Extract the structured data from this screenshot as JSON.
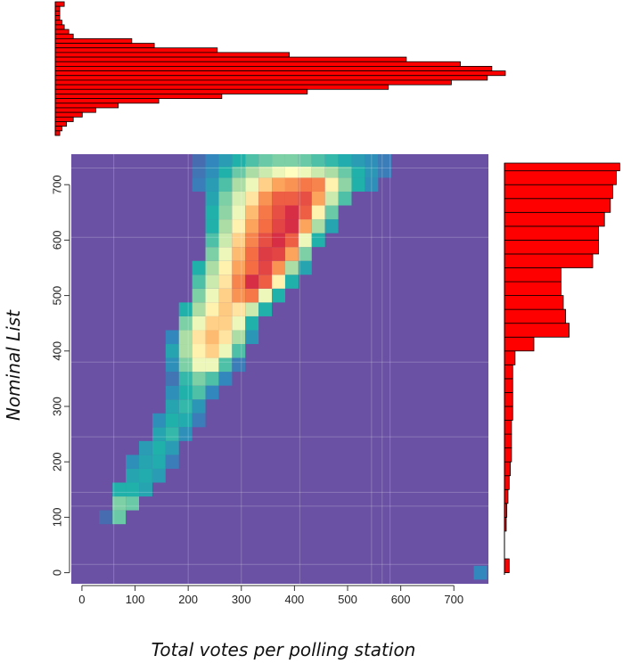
{
  "chart_data": [
    {
      "type": "heatmap",
      "title": "",
      "xlabel": "Total votes per polling station",
      "ylabel": "Nominal List",
      "xlim": [
        -20,
        765
      ],
      "ylim": [
        -20,
        755
      ],
      "xticks": [
        0,
        100,
        200,
        300,
        400,
        500,
        600,
        700
      ],
      "yticks": [
        0,
        100,
        200,
        300,
        400,
        500,
        600,
        700
      ],
      "cell_size": 25,
      "grid": true,
      "colormap": "spectral",
      "background_color": "#6a51a3",
      "cells": [
        [
          45,
          100,
          0.08
        ],
        [
          70,
          100,
          0.38
        ],
        [
          70,
          125,
          0.4
        ],
        [
          95,
          125,
          0.38
        ],
        [
          70,
          150,
          0.3
        ],
        [
          95,
          150,
          0.3
        ],
        [
          120,
          150,
          0.25
        ],
        [
          95,
          175,
          0.25
        ],
        [
          120,
          175,
          0.28
        ],
        [
          145,
          175,
          0.22
        ],
        [
          95,
          200,
          0.18
        ],
        [
          120,
          200,
          0.25
        ],
        [
          145,
          200,
          0.28
        ],
        [
          170,
          200,
          0.12
        ],
        [
          120,
          225,
          0.22
        ],
        [
          145,
          225,
          0.3
        ],
        [
          170,
          225,
          0.22
        ],
        [
          145,
          250,
          0.25
        ],
        [
          170,
          250,
          0.32
        ],
        [
          195,
          250,
          0.18
        ],
        [
          145,
          275,
          0.18
        ],
        [
          170,
          275,
          0.3
        ],
        [
          195,
          275,
          0.28
        ],
        [
          220,
          275,
          0.12
        ],
        [
          170,
          300,
          0.25
        ],
        [
          195,
          300,
          0.32
        ],
        [
          220,
          300,
          0.2
        ],
        [
          170,
          325,
          0.18
        ],
        [
          195,
          325,
          0.3
        ],
        [
          220,
          325,
          0.35
        ],
        [
          245,
          325,
          0.15
        ],
        [
          170,
          350,
          0.1
        ],
        [
          195,
          350,
          0.32
        ],
        [
          220,
          350,
          0.4
        ],
        [
          245,
          350,
          0.35
        ],
        [
          270,
          350,
          0.15
        ],
        [
          170,
          375,
          0.18
        ],
        [
          195,
          375,
          0.4
        ],
        [
          220,
          375,
          0.55
        ],
        [
          245,
          375,
          0.55
        ],
        [
          270,
          375,
          0.35
        ],
        [
          295,
          375,
          0.12
        ],
        [
          170,
          400,
          0.25
        ],
        [
          195,
          400,
          0.45
        ],
        [
          220,
          400,
          0.6
        ],
        [
          245,
          400,
          0.65
        ],
        [
          270,
          400,
          0.55
        ],
        [
          295,
          400,
          0.35
        ],
        [
          170,
          425,
          0.15
        ],
        [
          195,
          425,
          0.45
        ],
        [
          220,
          425,
          0.62
        ],
        [
          245,
          425,
          0.68
        ],
        [
          270,
          425,
          0.62
        ],
        [
          295,
          425,
          0.45
        ],
        [
          320,
          425,
          0.2
        ],
        [
          195,
          450,
          0.4
        ],
        [
          220,
          450,
          0.55
        ],
        [
          245,
          450,
          0.65
        ],
        [
          270,
          450,
          0.65
        ],
        [
          295,
          450,
          0.55
        ],
        [
          320,
          450,
          0.3
        ],
        [
          195,
          475,
          0.3
        ],
        [
          220,
          475,
          0.45
        ],
        [
          245,
          475,
          0.6
        ],
        [
          270,
          475,
          0.66
        ],
        [
          295,
          475,
          0.62
        ],
        [
          320,
          475,
          0.5
        ],
        [
          345,
          475,
          0.3
        ],
        [
          220,
          500,
          0.4
        ],
        [
          245,
          500,
          0.55
        ],
        [
          270,
          500,
          0.65
        ],
        [
          295,
          500,
          0.75
        ],
        [
          320,
          500,
          0.8
        ],
        [
          345,
          500,
          0.55
        ],
        [
          370,
          500,
          0.3
        ],
        [
          220,
          525,
          0.35
        ],
        [
          245,
          525,
          0.5
        ],
        [
          270,
          525,
          0.62
        ],
        [
          295,
          525,
          0.78
        ],
        [
          320,
          525,
          0.95
        ],
        [
          345,
          525,
          0.85
        ],
        [
          370,
          525,
          0.6
        ],
        [
          395,
          525,
          0.3
        ],
        [
          220,
          550,
          0.3
        ],
        [
          245,
          550,
          0.45
        ],
        [
          270,
          550,
          0.6
        ],
        [
          295,
          550,
          0.72
        ],
        [
          320,
          550,
          0.82
        ],
        [
          345,
          550,
          0.9
        ],
        [
          370,
          550,
          0.75
        ],
        [
          395,
          550,
          0.45
        ],
        [
          420,
          550,
          0.25
        ],
        [
          245,
          575,
          0.4
        ],
        [
          270,
          575,
          0.55
        ],
        [
          295,
          575,
          0.68
        ],
        [
          320,
          575,
          0.82
        ],
        [
          345,
          575,
          0.92
        ],
        [
          370,
          575,
          0.9
        ],
        [
          395,
          575,
          0.72
        ],
        [
          420,
          575,
          0.4
        ],
        [
          245,
          600,
          0.35
        ],
        [
          270,
          600,
          0.5
        ],
        [
          295,
          600,
          0.65
        ],
        [
          320,
          600,
          0.78
        ],
        [
          345,
          600,
          0.88
        ],
        [
          370,
          600,
          0.95
        ],
        [
          395,
          600,
          0.85
        ],
        [
          420,
          600,
          0.55
        ],
        [
          445,
          600,
          0.3
        ],
        [
          245,
          625,
          0.3
        ],
        [
          270,
          625,
          0.45
        ],
        [
          295,
          625,
          0.6
        ],
        [
          320,
          625,
          0.72
        ],
        [
          345,
          625,
          0.82
        ],
        [
          370,
          625,
          0.9
        ],
        [
          395,
          625,
          0.95
        ],
        [
          420,
          625,
          0.72
        ],
        [
          445,
          625,
          0.45
        ],
        [
          470,
          625,
          0.25
        ],
        [
          245,
          650,
          0.3
        ],
        [
          270,
          650,
          0.42
        ],
        [
          295,
          650,
          0.55
        ],
        [
          320,
          650,
          0.68
        ],
        [
          345,
          650,
          0.8
        ],
        [
          370,
          650,
          0.88
        ],
        [
          395,
          650,
          0.95
        ],
        [
          420,
          650,
          0.85
        ],
        [
          445,
          650,
          0.6
        ],
        [
          470,
          650,
          0.38
        ],
        [
          245,
          675,
          0.25
        ],
        [
          270,
          675,
          0.4
        ],
        [
          295,
          675,
          0.52
        ],
        [
          320,
          675,
          0.62
        ],
        [
          345,
          675,
          0.75
        ],
        [
          370,
          675,
          0.85
        ],
        [
          395,
          675,
          0.85
        ],
        [
          420,
          675,
          0.88
        ],
        [
          445,
          675,
          0.72
        ],
        [
          470,
          675,
          0.5
        ],
        [
          495,
          675,
          0.35
        ],
        [
          220,
          700,
          0.12
        ],
        [
          245,
          700,
          0.22
        ],
        [
          270,
          700,
          0.35
        ],
        [
          295,
          700,
          0.45
        ],
        [
          320,
          700,
          0.55
        ],
        [
          345,
          700,
          0.65
        ],
        [
          370,
          700,
          0.72
        ],
        [
          395,
          700,
          0.75
        ],
        [
          420,
          700,
          0.8
        ],
        [
          445,
          700,
          0.78
        ],
        [
          470,
          700,
          0.6
        ],
        [
          495,
          700,
          0.42
        ],
        [
          520,
          700,
          0.3
        ],
        [
          545,
          700,
          0.18
        ],
        [
          220,
          725,
          0.1
        ],
        [
          245,
          725,
          0.18
        ],
        [
          270,
          725,
          0.3
        ],
        [
          295,
          725,
          0.38
        ],
        [
          320,
          725,
          0.45
        ],
        [
          345,
          725,
          0.5
        ],
        [
          370,
          725,
          0.55
        ],
        [
          395,
          725,
          0.58
        ],
        [
          420,
          725,
          0.55
        ],
        [
          445,
          725,
          0.5
        ],
        [
          470,
          725,
          0.45
        ],
        [
          495,
          725,
          0.38
        ],
        [
          520,
          725,
          0.3
        ],
        [
          545,
          725,
          0.2
        ],
        [
          570,
          725,
          0.12
        ],
        [
          220,
          745,
          0.08
        ],
        [
          245,
          745,
          0.15
        ],
        [
          270,
          745,
          0.22
        ],
        [
          295,
          745,
          0.3
        ],
        [
          320,
          745,
          0.35
        ],
        [
          345,
          745,
          0.38
        ],
        [
          370,
          745,
          0.4
        ],
        [
          395,
          745,
          0.4
        ],
        [
          420,
          745,
          0.38
        ],
        [
          445,
          745,
          0.35
        ],
        [
          470,
          745,
          0.32
        ],
        [
          495,
          745,
          0.28
        ],
        [
          520,
          745,
          0.22
        ],
        [
          545,
          745,
          0.18
        ],
        [
          570,
          745,
          0.12
        ],
        [
          750,
          0,
          0.15
        ]
      ]
    },
    {
      "type": "bar",
      "orientation": "vertical-bars-horizontal-length",
      "position": "top",
      "title": "",
      "bar_color": "#ff0000",
      "bars": [
        {
          "y": 5,
          "len": 0.02
        },
        {
          "y": 10,
          "len": 0.01
        },
        {
          "y": 15,
          "len": 0.01
        },
        {
          "y": 20,
          "len": 0.01
        },
        {
          "y": 30,
          "len": 0.015
        },
        {
          "y": 35,
          "len": 0.02
        },
        {
          "y": 40,
          "len": 0.03
        },
        {
          "y": 45,
          "len": 0.04
        },
        {
          "y": 50,
          "len": 0.17
        },
        {
          "y": 55,
          "len": 0.22
        },
        {
          "y": 60,
          "len": 0.36
        },
        {
          "y": 65,
          "len": 0.52
        },
        {
          "y": 70,
          "len": 0.78
        },
        {
          "y": 75,
          "len": 0.9
        },
        {
          "y": 80,
          "len": 0.97
        },
        {
          "y": 85,
          "len": 1.0
        },
        {
          "y": 90,
          "len": 0.96
        },
        {
          "y": 95,
          "len": 0.88
        },
        {
          "y": 100,
          "len": 0.74
        },
        {
          "y": 105,
          "len": 0.56
        },
        {
          "y": 110,
          "len": 0.37
        },
        {
          "y": 115,
          "len": 0.23
        },
        {
          "y": 120,
          "len": 0.14
        },
        {
          "y": 125,
          "len": 0.09
        },
        {
          "y": 130,
          "len": 0.06
        },
        {
          "y": 135,
          "len": 0.04
        },
        {
          "y": 140,
          "len": 0.025
        },
        {
          "y": 145,
          "len": 0.015
        },
        {
          "y": 150,
          "len": 0.01
        }
      ]
    },
    {
      "type": "bar",
      "orientation": "horizontal",
      "position": "right",
      "title": "",
      "bar_color": "#ff0000",
      "bins": [
        0,
        25,
        50,
        75,
        100,
        125,
        150,
        175,
        200,
        225,
        250,
        275,
        300,
        325,
        350,
        375,
        400,
        425,
        450,
        475,
        500,
        525,
        550,
        575,
        600,
        625,
        650,
        675,
        700,
        725
      ],
      "values": [
        0.04,
        0.0,
        0.0,
        0.01,
        0.02,
        0.03,
        0.04,
        0.05,
        0.06,
        0.06,
        0.06,
        0.07,
        0.07,
        0.07,
        0.07,
        0.09,
        0.25,
        0.55,
        0.52,
        0.5,
        0.48,
        0.48,
        0.75,
        0.8,
        0.8,
        0.85,
        0.9,
        0.92,
        0.95,
        0.98
      ]
    }
  ]
}
